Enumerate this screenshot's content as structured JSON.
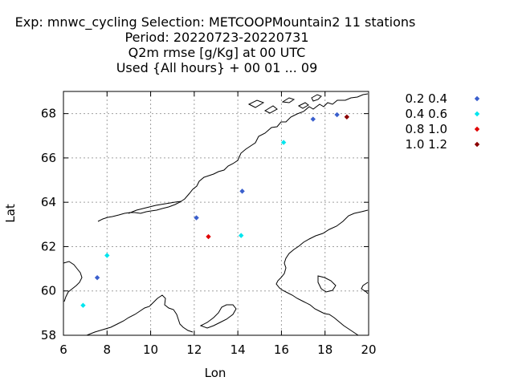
{
  "chart_data": {
    "type": "scatter",
    "title": [
      "Exp: mnwc_cycling   Selection: METCOOPMountain2     11 stations",
      "Period: 20220723-20220731",
      "Q2m rmse [g/Kg] at  00 UTC",
      "Used {All hours} + 00 01 ... 09"
    ],
    "xlabel": "Lon",
    "ylabel": "Lat",
    "xlim": [
      6,
      20
    ],
    "ylim": [
      58,
      69
    ],
    "xticks": [
      6,
      8,
      10,
      12,
      14,
      16,
      18,
      20
    ],
    "yticks": [
      58,
      60,
      62,
      64,
      66,
      68
    ],
    "xtick_labels": [
      "6",
      "8",
      "10",
      "12",
      "14",
      "16",
      "18",
      "20"
    ],
    "ytick_labels": [
      "58",
      "60",
      "62",
      "64",
      "66",
      "68"
    ],
    "grid": true,
    "legend_position": "outside-right-top",
    "series": [
      {
        "name": "0.2 0.4",
        "color": "#3a5fcd",
        "points": [
          [
            7.55,
            60.6
          ],
          [
            12.1,
            63.3
          ],
          [
            14.2,
            64.5
          ],
          [
            17.45,
            67.75
          ],
          [
            18.55,
            67.95
          ]
        ]
      },
      {
        "name": "0.4 0.6",
        "color": "#00e5ee",
        "points": [
          [
            6.9,
            59.35
          ],
          [
            8.0,
            61.6
          ],
          [
            14.15,
            62.5
          ],
          [
            16.1,
            66.7
          ]
        ]
      },
      {
        "name": "0.8 1.0",
        "color": "#e00000",
        "points": [
          [
            12.65,
            62.45
          ]
        ]
      },
      {
        "name": "1.0 1.2",
        "color": "#8b0000",
        "points": [
          [
            19.0,
            67.85
          ]
        ]
      }
    ]
  }
}
